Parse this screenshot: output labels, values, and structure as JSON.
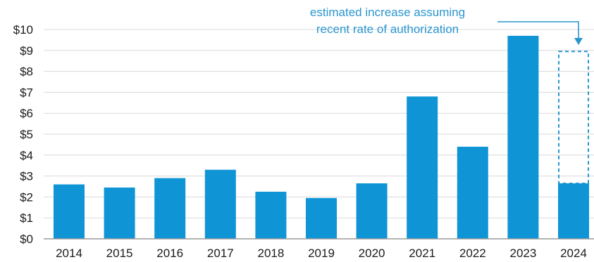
{
  "chart_data": {
    "type": "bar",
    "title": "",
    "xlabel": "",
    "ylabel": "",
    "categories": [
      "2014",
      "2015",
      "2016",
      "2017",
      "2018",
      "2019",
      "2020",
      "2021",
      "2022",
      "2023",
      "2024"
    ],
    "values": [
      2.6,
      2.45,
      2.9,
      3.3,
      2.25,
      1.95,
      2.65,
      6.8,
      4.4,
      9.7,
      2.65
    ],
    "estimated": {
      "category": "2024",
      "from": 2.65,
      "to": 8.95,
      "style": "dashed-outline"
    },
    "ylim": [
      0,
      10
    ],
    "yticks": [
      0,
      1,
      2,
      3,
      4,
      5,
      6,
      7,
      8,
      9,
      10
    ],
    "ytick_labels": [
      "$0",
      "$1",
      "$2",
      "$3",
      "$4",
      "$5",
      "$6",
      "$7",
      "$8",
      "$9",
      "$10"
    ],
    "grid": true,
    "annotation": {
      "lines": [
        "estimated increase assuming",
        "recent rate of authorization"
      ]
    },
    "colors": {
      "bar": "#0f95d6",
      "annotation": "#2b95cf",
      "grid": "#d9d9d9",
      "axis": "#9a9a9a"
    }
  }
}
